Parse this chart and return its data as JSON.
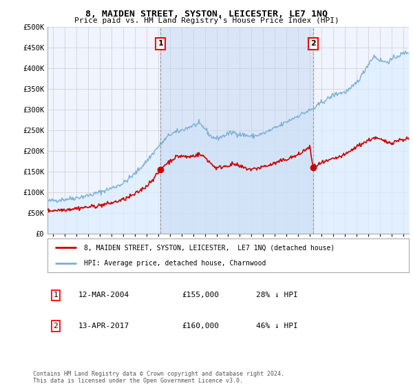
{
  "title": "8, MAIDEN STREET, SYSTON, LEICESTER, LE7 1NQ",
  "subtitle": "Price paid vs. HM Land Registry's House Price Index (HPI)",
  "sale1_date_num": 2004.2,
  "sale1_price": 155000,
  "sale1_label": "1",
  "sale1_text": "12-MAR-2004",
  "sale1_pct": "28% ↓ HPI",
  "sale2_date_num": 2017.28,
  "sale2_price": 160000,
  "sale2_label": "2",
  "sale2_text": "13-APR-2017",
  "sale2_pct": "46% ↓ HPI",
  "hpi_color": "#7bafd4",
  "hpi_fill_color": "#ddeeff",
  "price_color": "#cc0000",
  "marker_color": "#cc0000",
  "vline_color": "#999999",
  "legend_house_label": "8, MAIDEN STREET, SYSTON, LEICESTER,  LE7 1NQ (detached house)",
  "legend_hpi_label": "HPI: Average price, detached house, Charnwood",
  "footer": "Contains HM Land Registry data © Crown copyright and database right 2024.\nThis data is licensed under the Open Government Licence v3.0.",
  "ylim": [
    0,
    500000
  ],
  "xlim_start": 1994.5,
  "xlim_end": 2025.5,
  "yticks": [
    0,
    50000,
    100000,
    150000,
    200000,
    250000,
    300000,
    350000,
    400000,
    450000,
    500000
  ],
  "ytick_labels": [
    "£0",
    "£50K",
    "£100K",
    "£150K",
    "£200K",
    "£250K",
    "£300K",
    "£350K",
    "£400K",
    "£450K",
    "£500K"
  ],
  "xticks": [
    1995,
    1996,
    1997,
    1998,
    1999,
    2000,
    2001,
    2002,
    2003,
    2004,
    2005,
    2006,
    2007,
    2008,
    2009,
    2010,
    2011,
    2012,
    2013,
    2014,
    2015,
    2016,
    2017,
    2018,
    2019,
    2020,
    2021,
    2022,
    2023,
    2024,
    2025
  ],
  "background_color": "#ffffff",
  "grid_color": "#cccccc",
  "plot_bg_color": "#f0f4ff"
}
